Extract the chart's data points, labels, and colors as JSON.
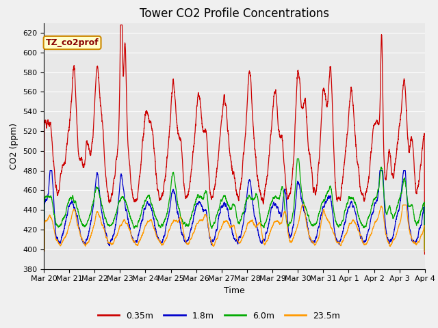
{
  "title": "Tower CO2 Profile Concentrations",
  "xlabel": "Time",
  "ylabel": "CO2 (ppm)",
  "ylim": [
    380,
    630
  ],
  "yticks": [
    380,
    400,
    420,
    440,
    460,
    480,
    500,
    520,
    540,
    560,
    580,
    600,
    620
  ],
  "days": 15,
  "num_points": 5000,
  "xtick_labels": [
    "Mar 20",
    "Mar 21",
    "Mar 22",
    "Mar 23",
    "Mar 24",
    "Mar 25",
    "Mar 26",
    "Mar 27",
    "Mar 28",
    "Mar 29",
    "Mar 30",
    "Mar 31",
    "Apr 1",
    "Apr 2",
    "Apr 3",
    "Apr 4"
  ],
  "line_colors": [
    "#cc0000",
    "#0000cc",
    "#00aa00",
    "#ff9900"
  ],
  "line_labels": [
    "0.35m",
    "1.8m",
    "6.0m",
    "23.5m"
  ],
  "annotation_text": "TZ_co2prof",
  "annotation_bg": "#ffffcc",
  "annotation_border": "#cc8800",
  "plot_bg": "#e8e8e8",
  "grid_color": "#ffffff",
  "title_fontsize": 12,
  "axis_label_fontsize": 9,
  "tick_fontsize": 8
}
